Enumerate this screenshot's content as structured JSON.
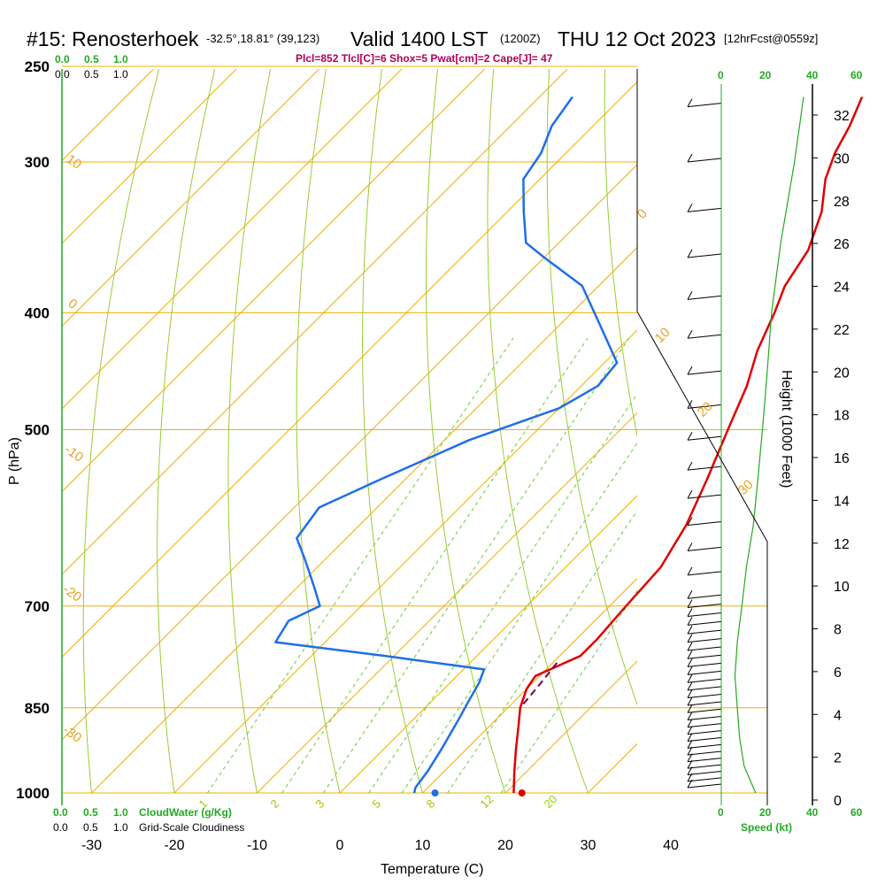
{
  "header": {
    "station": "#15: Renosterhoek",
    "coords": "-32.5°,18.81° (39,123)",
    "valid": "Valid 1400 LST",
    "zulu": "(1200Z)",
    "date": "THU 12 Oct 2023",
    "forecast": "[12hrFcst@0559z]",
    "indices": "Plcl=852 Tlcl[C]=6 Shox=5 Pwat[cm]=2 Cape[J]= 47"
  },
  "labels": {
    "y_axis": "P (hPa)",
    "x_axis": "Temperature (C)",
    "height_axis": "Height (1000 Feet)",
    "cloudwater": "CloudWater (g/Kg)",
    "cloudiness": "Grid-Scale Cloudiness",
    "speed": "Speed (kt)"
  },
  "scales": {
    "cloud_green": [
      "0.0",
      "0.5",
      "1.0"
    ],
    "cloud_black": [
      "0.0",
      "0.5",
      "1.0"
    ],
    "speed_top_black": "0",
    "speed_top_green": [
      "20",
      "40",
      "60"
    ],
    "speed_bottom_black": "0",
    "speed_bottom_green": [
      "20",
      "40",
      "60"
    ]
  },
  "chart_data": {
    "type": "line",
    "title": "#15: Renosterhoek",
    "xlabel": "Temperature (C)",
    "ylabel": "P (hPa)",
    "xlim": [
      -34,
      45
    ],
    "ylim": [
      1000,
      250
    ],
    "y_scale": "log",
    "pressure_ticks": [
      1000,
      850,
      700,
      500,
      400,
      300,
      250
    ],
    "temperature_ticks": [
      -30,
      -20,
      -10,
      0,
      10,
      20,
      30,
      40
    ],
    "height_ticks_kft": [
      0,
      2,
      4,
      6,
      8,
      10,
      12,
      14,
      16,
      18,
      20,
      22,
      24,
      26,
      28,
      30,
      32
    ],
    "isotherm_labels": [
      "10",
      "0",
      "-10",
      "-20",
      "-30",
      "0",
      "10",
      "20",
      "30"
    ],
    "mixing_ratio_labels": [
      "1",
      "2",
      "3",
      "5",
      "8",
      "12",
      "20"
    ],
    "series": [
      {
        "name": "Temperature",
        "color": "#e00000",
        "points": [
          [
            21,
            1000
          ],
          [
            18.5,
            960
          ],
          [
            16,
            920
          ],
          [
            13.5,
            880
          ],
          [
            11.5,
            850
          ],
          [
            10,
            820
          ],
          [
            9.5,
            800
          ],
          [
            12.5,
            770
          ],
          [
            12.5,
            745
          ],
          [
            12,
            700
          ],
          [
            11.5,
            650
          ],
          [
            9.5,
            600
          ],
          [
            6.5,
            550
          ],
          [
            3,
            500
          ],
          [
            0,
            460
          ],
          [
            -3,
            430
          ],
          [
            -5.5,
            400
          ],
          [
            -7.5,
            380
          ],
          [
            -9,
            355
          ],
          [
            -12,
            330
          ],
          [
            -15.5,
            310
          ],
          [
            -17.5,
            295
          ],
          [
            -19,
            280
          ],
          [
            -21,
            265
          ]
        ]
      },
      {
        "name": "Dewpoint",
        "color": "#1e6fe6",
        "points": [
          [
            9,
            1000
          ],
          [
            8.5,
            990
          ],
          [
            8,
            960
          ],
          [
            7,
            920
          ],
          [
            5.5,
            870
          ],
          [
            4.5,
            840
          ],
          [
            3.5,
            810
          ],
          [
            2.5,
            790
          ],
          [
            -11,
            770
          ],
          [
            -26,
            750
          ],
          [
            -27,
            720
          ],
          [
            -25,
            700
          ],
          [
            -28,
            675
          ],
          [
            -32.5,
            640
          ],
          [
            -36,
            615
          ],
          [
            -37,
            580
          ],
          [
            -33,
            550
          ],
          [
            -27,
            510
          ],
          [
            -20,
            480
          ],
          [
            -18,
            460
          ],
          [
            -18.5,
            440
          ],
          [
            -25,
            410
          ],
          [
            -32,
            380
          ],
          [
            -40,
            360
          ],
          [
            -44,
            350
          ],
          [
            -48,
            330
          ],
          [
            -52,
            310
          ],
          [
            -53,
            295
          ],
          [
            -55,
            280
          ],
          [
            -56,
            265
          ]
        ]
      },
      {
        "name": "Parcel",
        "color": "#7b0046",
        "dashed": true,
        "points": [
          [
            10.5,
            780
          ],
          [
            11,
            810
          ],
          [
            11.5,
            850
          ]
        ]
      }
    ],
    "surface_temperature_c": 22,
    "surface_dewpoint_c": 11.5,
    "wind_speed_kt": [
      [
        15,
        1000
      ],
      [
        10,
        950
      ],
      [
        8,
        900
      ],
      [
        7,
        850
      ],
      [
        6,
        800
      ],
      [
        7,
        750
      ],
      [
        9,
        700
      ],
      [
        11,
        650
      ],
      [
        14,
        600
      ],
      [
        16,
        550
      ],
      [
        18,
        500
      ],
      [
        20,
        450
      ],
      [
        22,
        400
      ],
      [
        26,
        350
      ],
      [
        32,
        300
      ],
      [
        36,
        265
      ]
    ]
  }
}
